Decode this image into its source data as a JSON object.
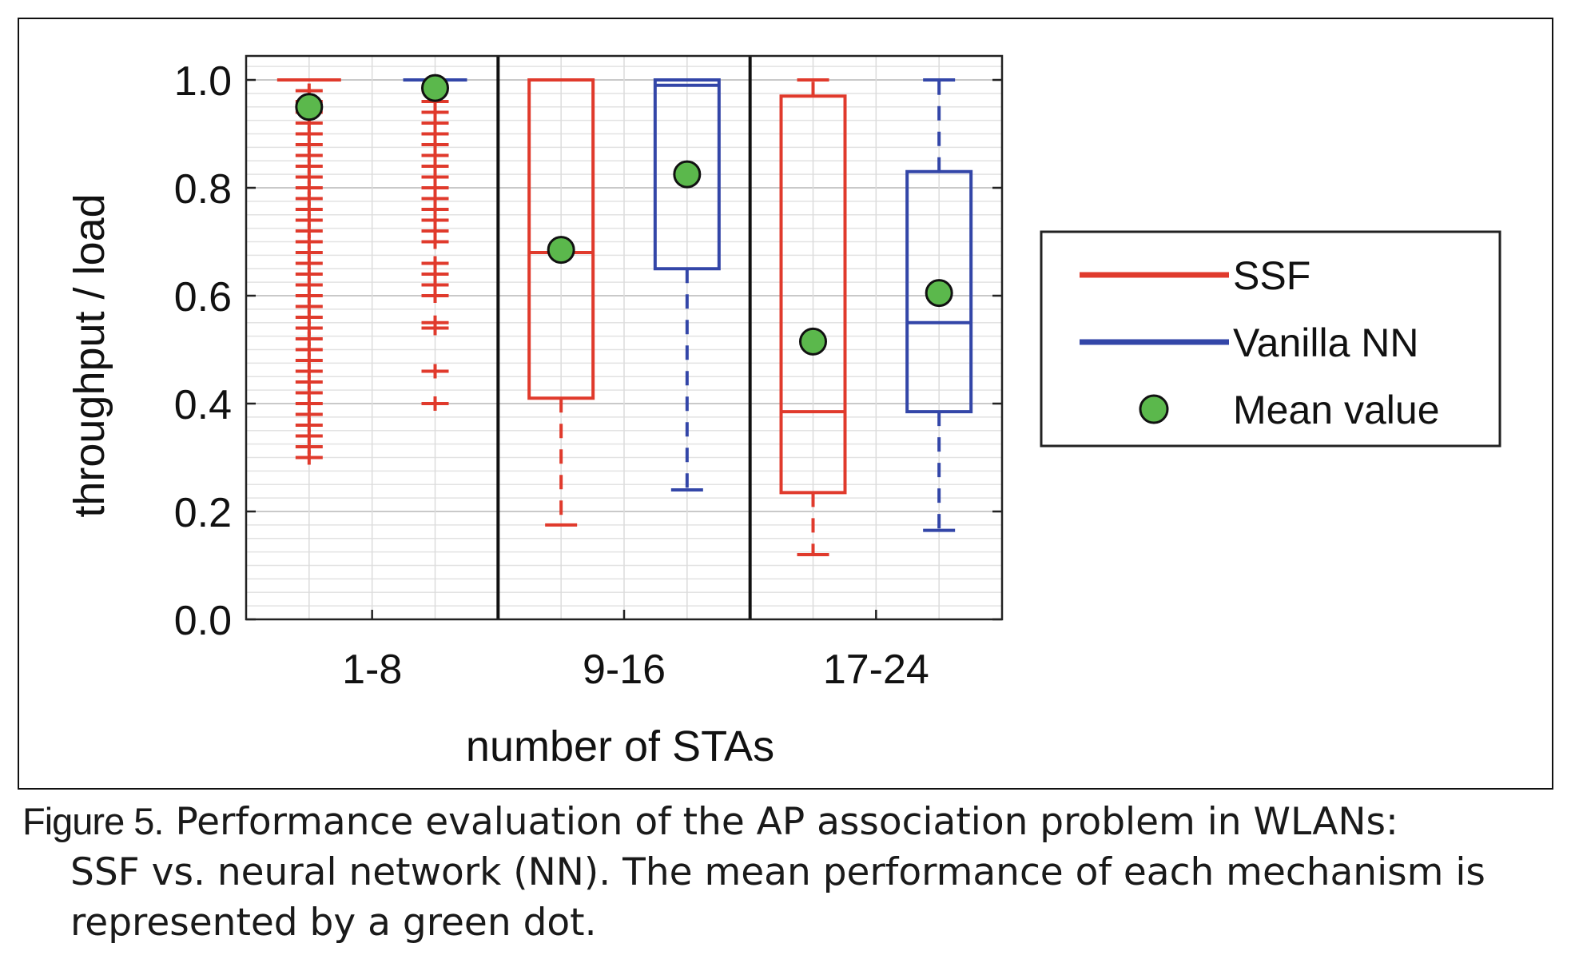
{
  "chart_data": {
    "type": "box",
    "xlabel": "number of STAs",
    "ylabel": "throughput / load",
    "ylim": [
      0.0,
      1.0
    ],
    "yticks": [
      "0.0",
      "0.2",
      "0.4",
      "0.6",
      "0.8",
      "1.0"
    ],
    "categories": [
      "1-8",
      "9-16",
      "17-24"
    ],
    "grid": true,
    "legend_position": "right",
    "legend": [
      {
        "label": "SSF",
        "kind": "line",
        "color": "#e03a2c"
      },
      {
        "label": "Vanilla NN",
        "kind": "line",
        "color": "#3346a8"
      },
      {
        "label": "Mean value",
        "kind": "dot",
        "color": "#5bb84c"
      }
    ],
    "series": [
      {
        "name": "SSF",
        "color": "#e03a2c",
        "boxes": [
          {
            "category": "1-8",
            "whisker_low": 1.0,
            "q1": 1.0,
            "median": 1.0,
            "q3": 1.0,
            "whisker_high": 1.0,
            "mean": 0.95,
            "outliers": [
              0.3,
              0.32,
              0.34,
              0.36,
              0.38,
              0.4,
              0.42,
              0.44,
              0.46,
              0.48,
              0.5,
              0.52,
              0.54,
              0.56,
              0.58,
              0.6,
              0.62,
              0.64,
              0.66,
              0.68,
              0.7,
              0.72,
              0.74,
              0.76,
              0.78,
              0.8,
              0.82,
              0.84,
              0.86,
              0.88,
              0.9,
              0.92,
              0.94,
              0.96,
              0.98
            ]
          },
          {
            "category": "9-16",
            "whisker_low": 0.175,
            "q1": 0.41,
            "median": 0.68,
            "q3": 1.0,
            "whisker_high": 1.0,
            "mean": 0.685,
            "outliers": []
          },
          {
            "category": "17-24",
            "whisker_low": 0.12,
            "q1": 0.235,
            "median": 0.385,
            "q3": 0.97,
            "whisker_high": 1.0,
            "mean": 0.515,
            "outliers": []
          }
        ]
      },
      {
        "name": "Vanilla NN",
        "color": "#3346a8",
        "boxes": [
          {
            "category": "1-8",
            "whisker_low": 1.0,
            "q1": 1.0,
            "median": 1.0,
            "q3": 1.0,
            "whisker_high": 1.0,
            "mean": 0.985,
            "outliers": [
              0.4,
              0.46,
              0.54,
              0.55,
              0.6,
              0.62,
              0.64,
              0.66,
              0.7,
              0.72,
              0.74,
              0.76,
              0.78,
              0.8,
              0.82,
              0.84,
              0.86,
              0.88,
              0.9,
              0.92,
              0.94,
              0.96,
              0.98
            ]
          },
          {
            "category": "9-16",
            "whisker_low": 0.24,
            "q1": 0.65,
            "median": 0.99,
            "q3": 1.0,
            "whisker_high": 1.0,
            "mean": 0.825,
            "outliers": []
          },
          {
            "category": "17-24",
            "whisker_low": 0.165,
            "q1": 0.385,
            "median": 0.55,
            "q3": 0.83,
            "whisker_high": 1.0,
            "mean": 0.605,
            "outliers": []
          }
        ]
      }
    ],
    "mean_marker_color": "#5bb84c"
  },
  "caption": {
    "label": "Figure 5.",
    "line1": "Performance evaluation of the AP association problem in WLANs:",
    "rest": "SSF vs. neural network (NN). The mean performance of each mechanism is represented by a green dot."
  }
}
